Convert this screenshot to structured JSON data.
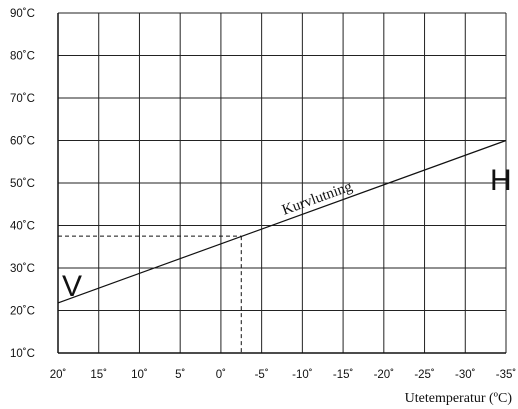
{
  "chart_data": {
    "type": "line",
    "title": "",
    "xlabel": "Utetemperatur (ºC)",
    "ylabel": "",
    "x_reversed": true,
    "xlim": [
      20,
      -35
    ],
    "ylim": [
      10,
      90
    ],
    "grid": true,
    "x_ticks": [
      20,
      15,
      10,
      5,
      0,
      -5,
      -10,
      -15,
      -20,
      -25,
      -30,
      -35
    ],
    "x_tick_labels": [
      "20˚",
      "15˚",
      "10˚",
      "5˚",
      "0˚",
      "-5˚",
      "-10˚",
      "-15˚",
      "-20˚",
      "-25˚",
      "-30˚",
      "-35˚"
    ],
    "y_ticks": [
      10,
      20,
      30,
      40,
      50,
      60,
      70,
      80,
      90
    ],
    "y_tick_labels": [
      "10˚C",
      "20˚C",
      "30˚C",
      "40˚C",
      "50˚C",
      "60˚C",
      "70˚C",
      "80˚C",
      "90˚C"
    ],
    "series": [
      {
        "name": "Kurvlutning",
        "x": [
          20,
          -35
        ],
        "y": [
          21.8,
          60
        ],
        "style": "solid",
        "color": "#111111"
      }
    ],
    "reference_point": {
      "x": -2.5,
      "y": 37.5,
      "style": "dashed"
    },
    "annotations": {
      "curve_label": "Kurvlutning",
      "left_label": "V",
      "right_label": "H"
    }
  }
}
